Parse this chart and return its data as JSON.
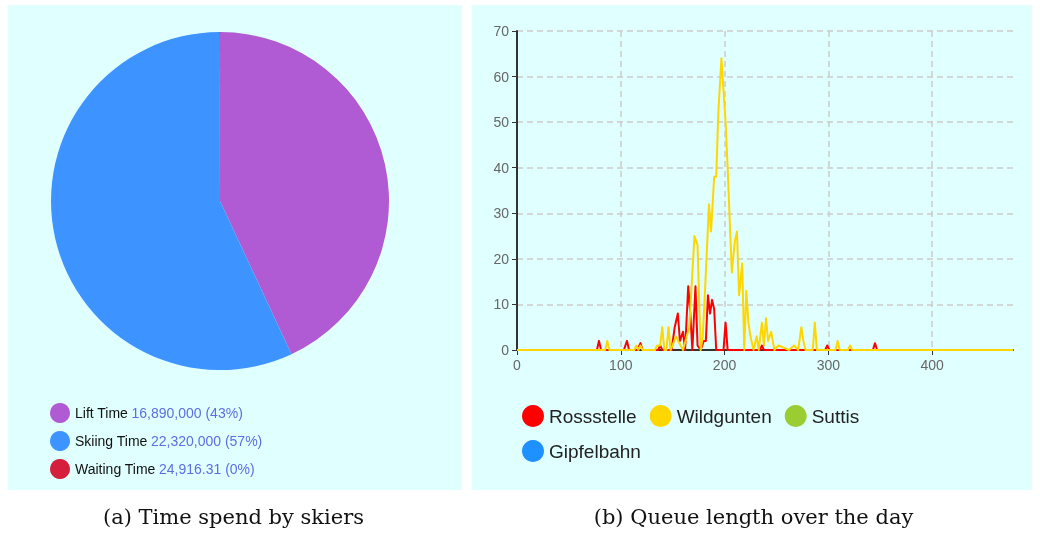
{
  "chart_data": [
    {
      "type": "pie",
      "title": "(a) Time spend by skiers",
      "categories": [
        "Lift Time",
        "Skiing Time",
        "Waiting Time"
      ],
      "values": [
        16890000,
        22320000,
        24916.31
      ],
      "colors": [
        "#b05bd4",
        "#3d93ff",
        "#d41e3c"
      ],
      "value_labels": [
        "16,890,000 (43%)",
        "22,320,000 (57%)",
        "24,916.31 (0%)"
      ],
      "legend": "bottom left"
    },
    {
      "type": "line",
      "title": "(b) Queue length over the day",
      "legend": "bottom",
      "grid": true,
      "line_style": "solid",
      "marker": "none",
      "xlim": [
        0,
        478
      ],
      "xticks": [
        0,
        100,
        200,
        300,
        400
      ],
      "ylim": [
        0,
        70
      ],
      "yticks": [
        0,
        10,
        20,
        30,
        40,
        50,
        60,
        70
      ],
      "series": [
        {
          "name": "Rossstelle",
          "color": "#ff0000",
          "x": [
            0,
            77,
            79,
            81,
            103,
            106,
            108,
            116,
            119,
            121,
            136,
            138,
            140,
            149,
            152,
            155,
            157,
            160,
            162,
            165,
            167,
            169,
            172,
            174,
            177,
            180,
            182,
            184,
            186,
            188,
            190,
            192,
            199,
            201,
            203,
            234,
            236,
            238,
            297,
            299,
            301,
            343,
            345,
            347,
            478
          ],
          "values": [
            0,
            0,
            2,
            0,
            0,
            2,
            0,
            0,
            1.5,
            0,
            0,
            1,
            0,
            0,
            5,
            8,
            2,
            4,
            0,
            14,
            8,
            0,
            14,
            1,
            0,
            2,
            2,
            12,
            8,
            11,
            9,
            0,
            0,
            6,
            0,
            0,
            1,
            0,
            0,
            1,
            0,
            0,
            1.5,
            0,
            0
          ]
        },
        {
          "name": "Wildgunten",
          "color": "#ffd700",
          "x": [
            0,
            85,
            87,
            89,
            113,
            115,
            117,
            119,
            121,
            133,
            135,
            138,
            140,
            142,
            144,
            146,
            148,
            150,
            153,
            160,
            166,
            171,
            174,
            177,
            179,
            181,
            185,
            187,
            190,
            192,
            194,
            197,
            199,
            201,
            203,
            207,
            210,
            212,
            214,
            217,
            219,
            221,
            223,
            225,
            228,
            231,
            233,
            236,
            238,
            240,
            242,
            245,
            248,
            252,
            262,
            267,
            271,
            274,
            276,
            278,
            280,
            285,
            287,
            289,
            307,
            309,
            311,
            319,
            321,
            323,
            478
          ],
          "values": [
            0,
            0,
            2,
            0,
            0,
            1,
            0,
            1,
            0,
            0,
            1,
            1,
            5,
            0,
            0,
            5,
            0,
            1,
            3,
            0,
            5,
            25,
            23,
            0,
            3,
            12,
            32,
            26,
            38,
            38,
            52,
            64,
            57,
            50,
            40,
            17,
            24,
            26,
            12,
            19,
            0,
            13,
            6,
            3,
            0,
            3,
            0,
            6,
            1,
            7,
            2,
            4,
            0,
            1,
            0,
            1,
            0,
            5,
            2,
            0,
            0,
            0,
            6,
            0,
            0,
            2,
            0,
            0,
            1,
            0,
            0
          ]
        },
        {
          "name": "Suttis",
          "color": "#9acd32"
        },
        {
          "name": "Gipfelbahn",
          "color": "#1e90ff"
        }
      ]
    }
  ]
}
